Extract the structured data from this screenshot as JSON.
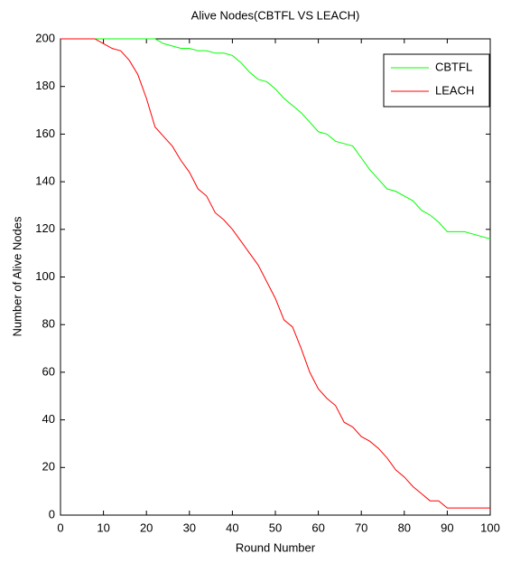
{
  "chart_data": {
    "type": "line",
    "title": "Alive Nodes(CBTFL VS LEACH)",
    "xlabel": "Round Number",
    "ylabel": "Number of Alive Nodes",
    "x": [
      0,
      2,
      4,
      6,
      8,
      10,
      12,
      14,
      16,
      18,
      20,
      22,
      24,
      26,
      28,
      30,
      32,
      34,
      36,
      38,
      40,
      42,
      44,
      46,
      48,
      50,
      52,
      54,
      56,
      58,
      60,
      62,
      64,
      66,
      68,
      70,
      72,
      74,
      76,
      78,
      80,
      82,
      84,
      86,
      88,
      90,
      92,
      94,
      96,
      98,
      100
    ],
    "series": [
      {
        "name": "CBTFL",
        "color": "#00ff00",
        "values": [
          200,
          200,
          200,
          200,
          200,
          200,
          200,
          200,
          200,
          200,
          200,
          200,
          198,
          197,
          196,
          196,
          195,
          195,
          194,
          194,
          193,
          190,
          186,
          183,
          182,
          179,
          175,
          172,
          169,
          165,
          161,
          160,
          157,
          156,
          155,
          150,
          145,
          141,
          137,
          136,
          134,
          132,
          128,
          126,
          123,
          119,
          119,
          119,
          118,
          117,
          116
        ]
      },
      {
        "name": "LEACH",
        "color": "#ff0000",
        "values": [
          200,
          200,
          200,
          200,
          200,
          198,
          196,
          195,
          191,
          185,
          175,
          163,
          159,
          155,
          149,
          144,
          137,
          134,
          127,
          124,
          120,
          115,
          110,
          105,
          98,
          91,
          82,
          79,
          70,
          60,
          53,
          49,
          46,
          39,
          37,
          33,
          31,
          28,
          24,
          19,
          16,
          12,
          9,
          6,
          6,
          3,
          3,
          3,
          3,
          3,
          3
        ]
      }
    ],
    "xlim": [
      0,
      100
    ],
    "xticks": [
      0,
      10,
      20,
      30,
      40,
      50,
      60,
      70,
      80,
      90,
      100
    ],
    "ylim": [
      0,
      200
    ],
    "yticks": [
      0,
      20,
      40,
      60,
      80,
      100,
      120,
      140,
      160,
      180,
      200
    ],
    "legend": "northeast"
  }
}
